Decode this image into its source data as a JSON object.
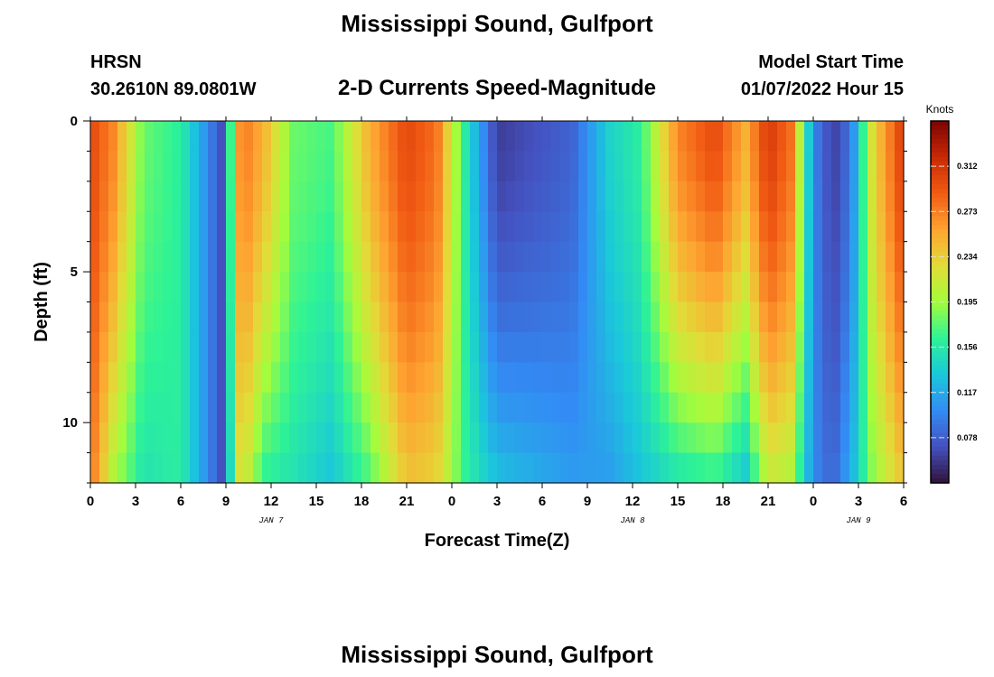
{
  "title": "Mississippi Sound, Gulfport",
  "station": "HRSN",
  "coords": "30.2610N  89.0801W",
  "subtitle": "2-D Currents Speed-Magnitude",
  "model_label": "Model Start Time",
  "model_time": "01/07/2022 Hour 15",
  "second_title": "Mississippi Sound, Gulfport",
  "chart_data": {
    "type": "heatmap",
    "title": "2-D Currents Speed-Magnitude",
    "xlabel": "Forecast Time(Z)",
    "ylabel": "Depth (ft)",
    "x_ticks": [
      "0",
      "3",
      "6",
      "9",
      "12",
      "15",
      "18",
      "21",
      "0",
      "3",
      "6",
      "9",
      "12",
      "15",
      "18",
      "21",
      "0",
      "3",
      "6"
    ],
    "x_range_hours": [
      0,
      54
    ],
    "date_labels": [
      {
        "text": "JAN 7",
        "hour": 12
      },
      {
        "text": "JAN 8",
        "hour": 36
      },
      {
        "text": "JAN 9",
        "hour": 51
      }
    ],
    "y_ticks": [
      "0",
      "5",
      "10"
    ],
    "y_range_ft": [
      0,
      12
    ],
    "colorbar": {
      "unit": "Knots",
      "ticks": [
        "0.312",
        "0.273",
        "0.234",
        "0.195",
        "0.156",
        "0.117",
        "0.078"
      ],
      "tick_values": [
        0.312,
        0.273,
        0.234,
        0.195,
        0.156,
        0.117,
        0.078
      ],
      "range": [
        0.039,
        0.351
      ],
      "colormap": "turbo"
    },
    "profile_hours": [
      0,
      1.5,
      3.5,
      6,
      8.7,
      10,
      11.5,
      13.5,
      16,
      18.5,
      21,
      23,
      25,
      27,
      29.5,
      32,
      34.5,
      36.5,
      39,
      41.5,
      43.5,
      45,
      46.5,
      48,
      49.3,
      50.5,
      52,
      54
    ],
    "surface_speed_knots": [
      0.3,
      0.27,
      0.18,
      0.16,
      0.07,
      0.28,
      0.25,
      0.18,
      0.17,
      0.25,
      0.3,
      0.28,
      0.15,
      0.06,
      0.07,
      0.08,
      0.14,
      0.16,
      0.27,
      0.3,
      0.25,
      0.31,
      0.28,
      0.1,
      0.06,
      0.09,
      0.23,
      0.31
    ],
    "bottom_speed_knots": [
      0.28,
      0.2,
      0.15,
      0.16,
      0.07,
      0.23,
      0.16,
      0.15,
      0.13,
      0.17,
      0.24,
      0.23,
      0.16,
      0.13,
      0.12,
      0.11,
      0.11,
      0.13,
      0.15,
      0.16,
      0.13,
      0.21,
      0.2,
      0.1,
      0.08,
      0.12,
      0.19,
      0.24
    ]
  }
}
